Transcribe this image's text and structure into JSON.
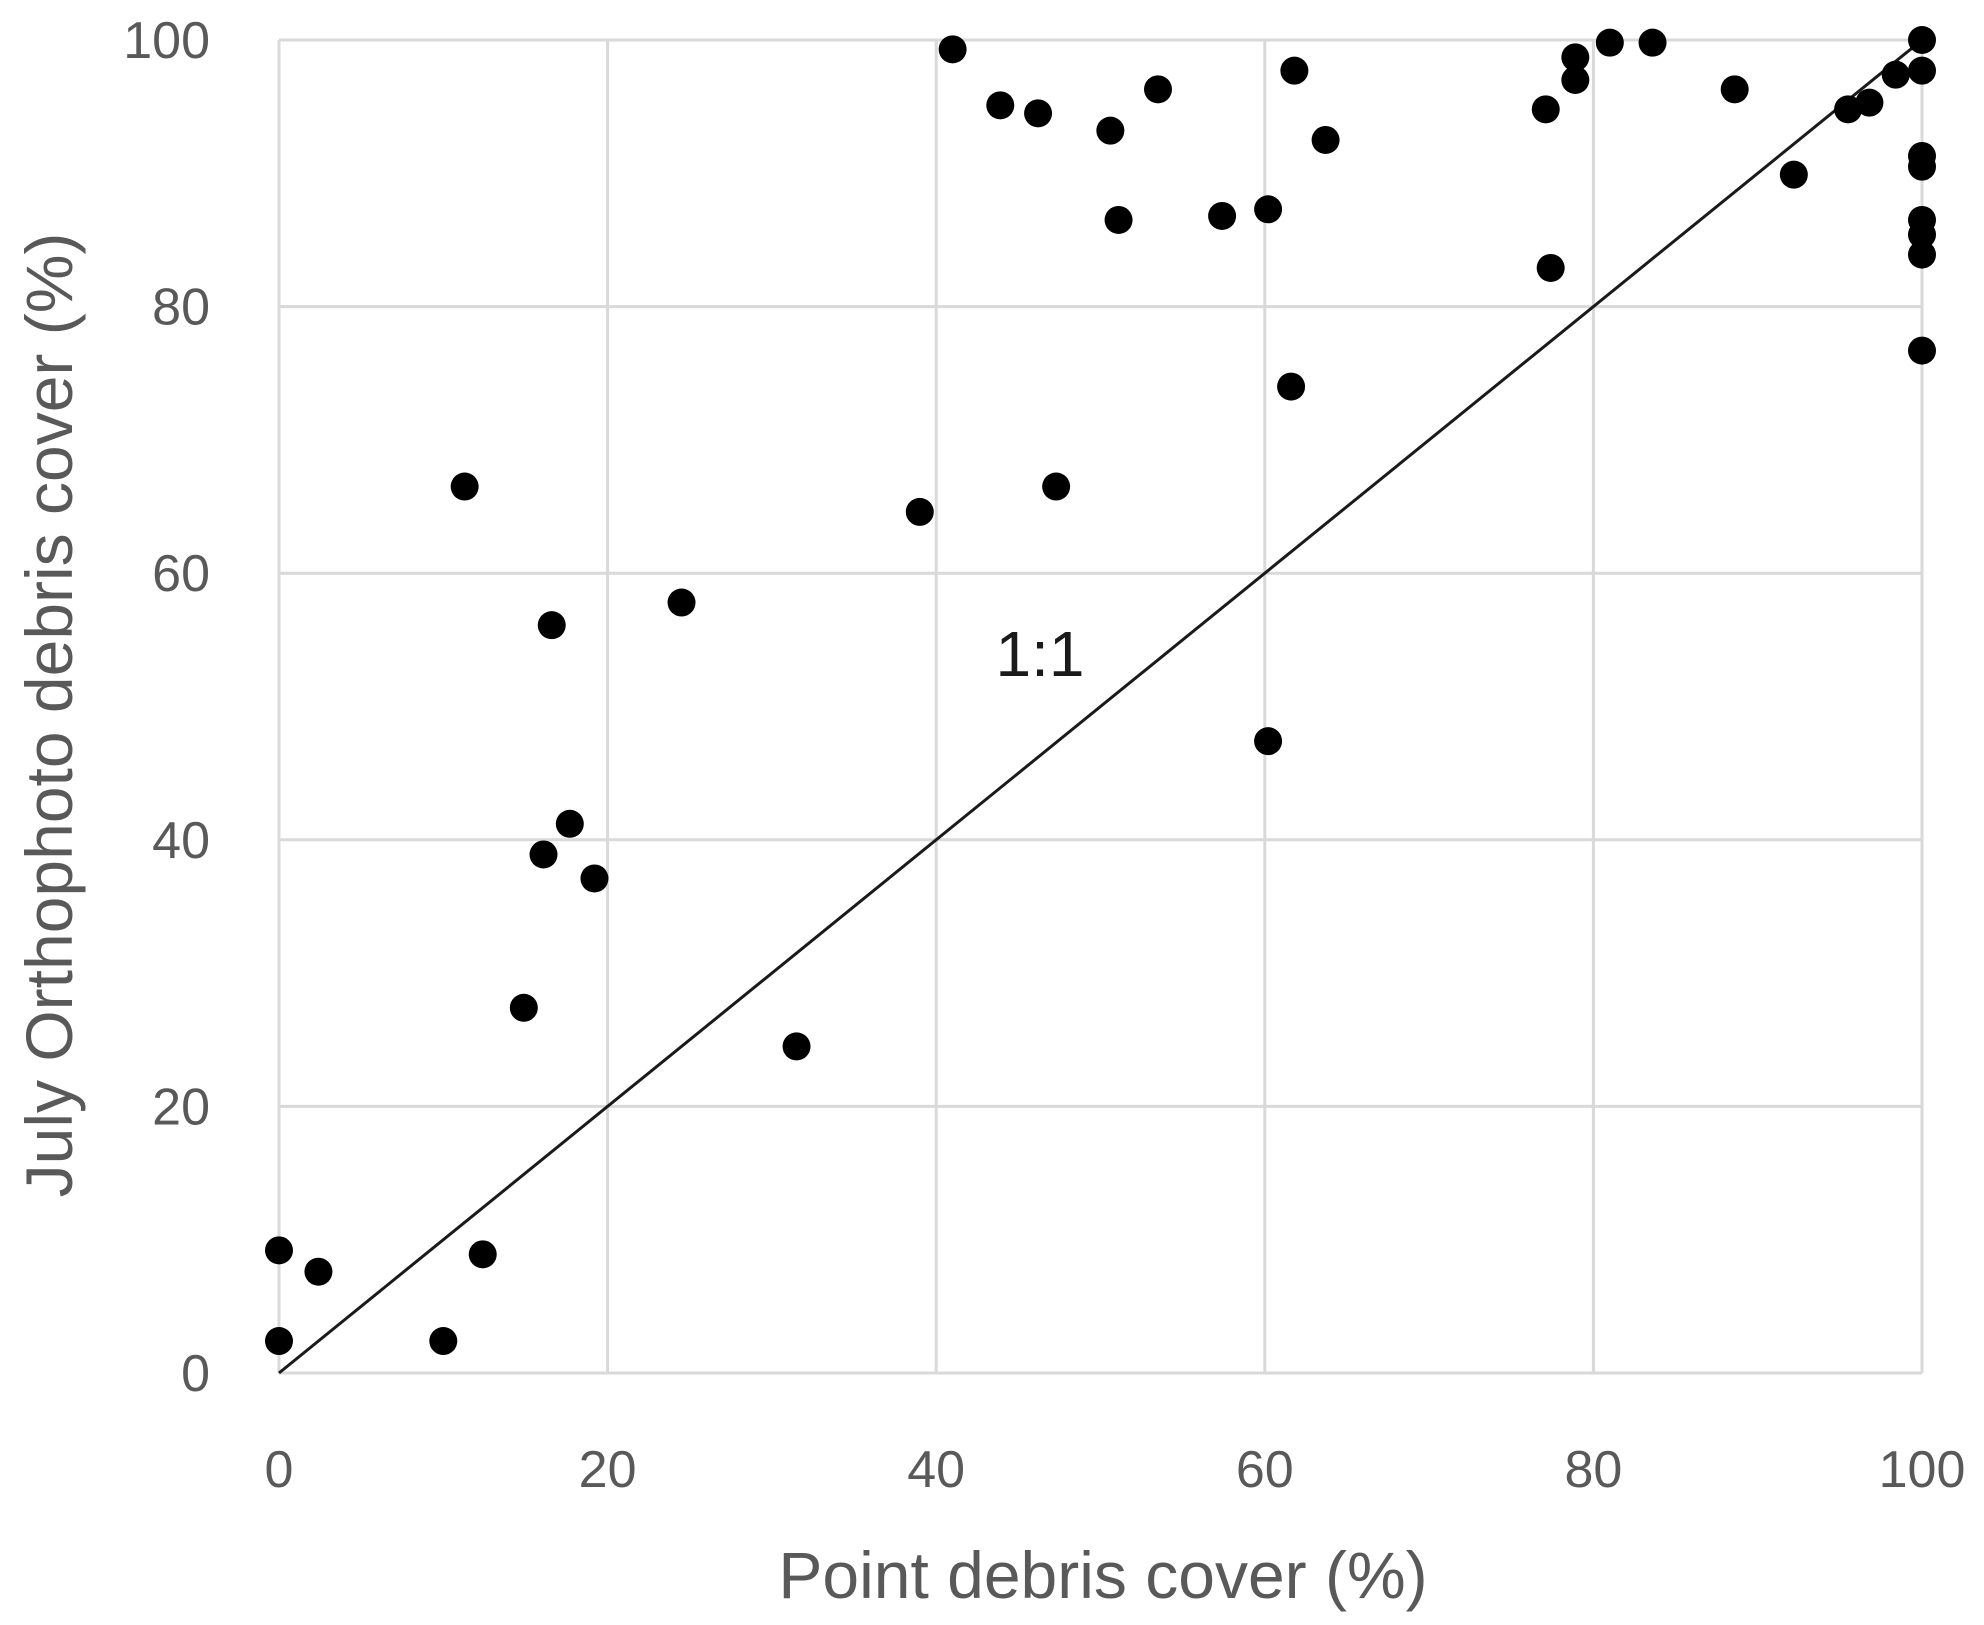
{
  "chart_data": {
    "type": "scatter",
    "title": "",
    "xlabel": "Point debris cover (%)",
    "ylabel": "July Orthophoto debris cover (%)",
    "xlim": [
      0,
      100
    ],
    "ylim": [
      0,
      100
    ],
    "x_ticks": [
      "0",
      "20",
      "40",
      "60",
      "80",
      "100"
    ],
    "y_ticks": [
      "0",
      "20",
      "40",
      "60",
      "80",
      "100"
    ],
    "grid": true,
    "legend": "none",
    "marker_color": "#000000",
    "grid_color": "#d9d9d9",
    "reference_line": {
      "label": "1:1",
      "from": [
        0,
        0
      ],
      "to": [
        100,
        100
      ]
    },
    "points": [
      [
        0,
        9.2
      ],
      [
        0,
        2.4
      ],
      [
        2.4,
        7.6
      ],
      [
        10,
        2.4
      ],
      [
        12.4,
        8.9
      ],
      [
        11.3,
        66.5
      ],
      [
        14.9,
        27.4
      ],
      [
        16.1,
        38.9
      ],
      [
        16.6,
        56.1
      ],
      [
        17.7,
        41.2
      ],
      [
        19.2,
        37.1
      ],
      [
        24.5,
        57.8
      ],
      [
        31.5,
        24.5
      ],
      [
        39,
        64.6
      ],
      [
        41,
        99.3
      ],
      [
        43.9,
        95.1
      ],
      [
        46.2,
        94.5
      ],
      [
        47.3,
        66.5
      ],
      [
        50.6,
        93.2
      ],
      [
        51.1,
        86.5
      ],
      [
        53.5,
        96.3
      ],
      [
        57.4,
        86.8
      ],
      [
        60.2,
        87.3
      ],
      [
        60.2,
        47.4
      ],
      [
        61.6,
        74
      ],
      [
        61.8,
        97.7
      ],
      [
        63.7,
        92.5
      ],
      [
        77.1,
        94.8
      ],
      [
        77.4,
        82.9
      ],
      [
        78.9,
        98.7
      ],
      [
        78.9,
        97
      ],
      [
        81,
        99.8
      ],
      [
        83.6,
        99.8
      ],
      [
        88.6,
        96.3
      ],
      [
        92.2,
        89.9
      ],
      [
        95.5,
        94.8
      ],
      [
        96.8,
        95.3
      ],
      [
        98.4,
        97.4
      ],
      [
        100,
        100
      ],
      [
        100,
        97.7
      ],
      [
        100,
        91.3
      ],
      [
        100,
        90.5
      ],
      [
        100,
        86.5
      ],
      [
        100,
        85.4
      ],
      [
        100,
        83.9
      ],
      [
        100,
        76.7
      ]
    ]
  }
}
